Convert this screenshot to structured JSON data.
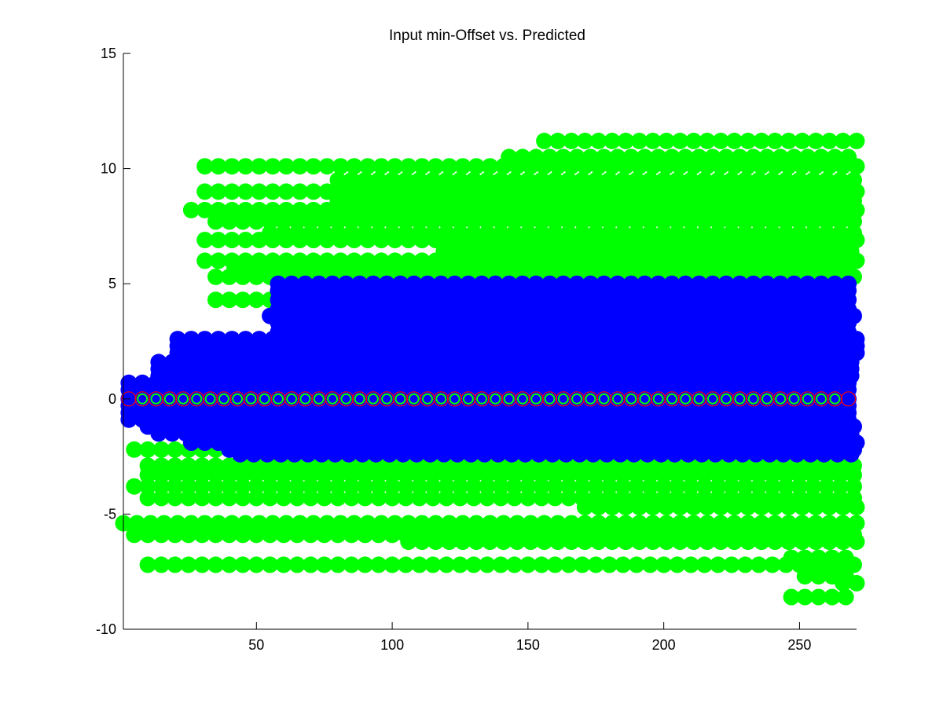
{
  "chart_data": {
    "type": "scatter",
    "title": "Input min-Offset vs. Predicted",
    "xlabel": "",
    "ylabel": "",
    "xlim": [
      1,
      271
    ],
    "ylim": [
      -10,
      15
    ],
    "x_ticks": [
      50,
      100,
      150,
      200,
      250
    ],
    "y_ticks": [
      -10,
      -5,
      0,
      5,
      10,
      15
    ],
    "x_tick_labels": [
      "50",
      "100",
      "150",
      "200",
      "250"
    ],
    "y_tick_labels": [
      "-10",
      "-5",
      "0",
      "5",
      "10",
      "15"
    ],
    "grid": false,
    "legend": "none",
    "x_step": 5,
    "colors": {
      "green": "#00ff00",
      "blue": "#0000ff",
      "red": "#ff0000"
    },
    "series": [
      {
        "color": "green",
        "marker": "filled-circle",
        "bands": [
          {
            "y": 11.2,
            "x_start": 156,
            "x_end": 271
          },
          {
            "y": 10.5,
            "x_start": 143,
            "x_end": 271
          },
          {
            "y": 10.1,
            "x_start": 31,
            "x_end": 271
          },
          {
            "y": 9.5,
            "x_start": 80,
            "x_end": 271
          },
          {
            "y": 9.0,
            "x_start": 31,
            "x_end": 271
          },
          {
            "y": 8.6,
            "x_start": 80,
            "x_end": 271
          },
          {
            "y": 8.2,
            "x_start": 26,
            "x_end": 271
          },
          {
            "y": 7.7,
            "x_start": 35,
            "x_end": 271
          },
          {
            "y": 7.2,
            "x_start": 55,
            "x_end": 271
          },
          {
            "y": 6.9,
            "x_start": 31,
            "x_end": 271
          },
          {
            "y": 6.4,
            "x_start": 119,
            "x_end": 271
          },
          {
            "y": 6.0,
            "x_start": 31,
            "x_end": 271
          },
          {
            "y": 5.7,
            "x_start": 42,
            "x_end": 271
          },
          {
            "y": 5.3,
            "x_start": 35,
            "x_end": 271
          },
          {
            "y": 4.3,
            "x_start": 35,
            "x_end": 60
          },
          {
            "y": -2.2,
            "x_start": 5,
            "x_end": 271
          },
          {
            "y": -2.9,
            "x_start": 10,
            "x_end": 271
          },
          {
            "y": -3.3,
            "x_start": 10,
            "x_end": 271
          },
          {
            "y": -3.8,
            "x_start": 5,
            "x_end": 271
          },
          {
            "y": -4.3,
            "x_start": 10,
            "x_end": 271
          },
          {
            "y": -4.7,
            "x_start": 171,
            "x_end": 271
          },
          {
            "y": -5.4,
            "x_start": 1,
            "x_end": 271
          },
          {
            "y": -5.9,
            "x_start": 5,
            "x_end": 271
          },
          {
            "y": -6.2,
            "x_start": 106,
            "x_end": 271
          },
          {
            "y": -6.9,
            "x_start": 247,
            "x_end": 271
          },
          {
            "y": -7.2,
            "x_start": 10,
            "x_end": 271
          },
          {
            "y": -7.7,
            "x_start": 252,
            "x_end": 271
          },
          {
            "y": -8.0,
            "x_start": 266,
            "x_end": 271
          },
          {
            "y": -8.6,
            "x_start": 247,
            "x_end": 271
          }
        ]
      },
      {
        "color": "blue",
        "marker": "filled-circle",
        "bands": [
          {
            "y": 5.0,
            "x_start": 58,
            "x_end": 271
          },
          {
            "y": 4.7,
            "x_start": 58,
            "x_end": 271
          },
          {
            "y": 4.3,
            "x_start": 58,
            "x_end": 271
          },
          {
            "y": 3.9,
            "x_start": 58,
            "x_end": 271
          },
          {
            "y": 3.6,
            "x_start": 55,
            "x_end": 271
          },
          {
            "y": 3.3,
            "x_start": 58,
            "x_end": 271
          },
          {
            "y": 2.9,
            "x_start": 58,
            "x_end": 271
          },
          {
            "y": 2.6,
            "x_start": 21,
            "x_end": 271
          },
          {
            "y": 2.3,
            "x_start": 21,
            "x_end": 271
          },
          {
            "y": 2.0,
            "x_start": 21,
            "x_end": 271
          },
          {
            "y": 1.6,
            "x_start": 14,
            "x_end": 271
          },
          {
            "y": 1.3,
            "x_start": 14,
            "x_end": 271
          },
          {
            "y": 1.0,
            "x_start": 14,
            "x_end": 271
          },
          {
            "y": 0.7,
            "x_start": 3,
            "x_end": 271
          },
          {
            "y": 0.4,
            "x_start": 3,
            "x_end": 271
          },
          {
            "y": 0.0,
            "x_start": 3,
            "x_end": 271
          },
          {
            "y": -0.3,
            "x_start": 3,
            "x_end": 271
          },
          {
            "y": -0.6,
            "x_start": 3,
            "x_end": 271
          },
          {
            "y": -0.9,
            "x_start": 3,
            "x_end": 271
          },
          {
            "y": -1.2,
            "x_start": 10,
            "x_end": 271
          },
          {
            "y": -1.5,
            "x_start": 14,
            "x_end": 271
          },
          {
            "y": -1.9,
            "x_start": 26,
            "x_end": 271
          },
          {
            "y": -2.2,
            "x_start": 40,
            "x_end": 271
          },
          {
            "y": -2.4,
            "x_start": 44,
            "x_end": 271
          }
        ]
      },
      {
        "color": "red",
        "marker": "circle",
        "bands": [
          {
            "y": 0.0,
            "x_start": 3,
            "x_end": 271
          }
        ]
      }
    ]
  }
}
